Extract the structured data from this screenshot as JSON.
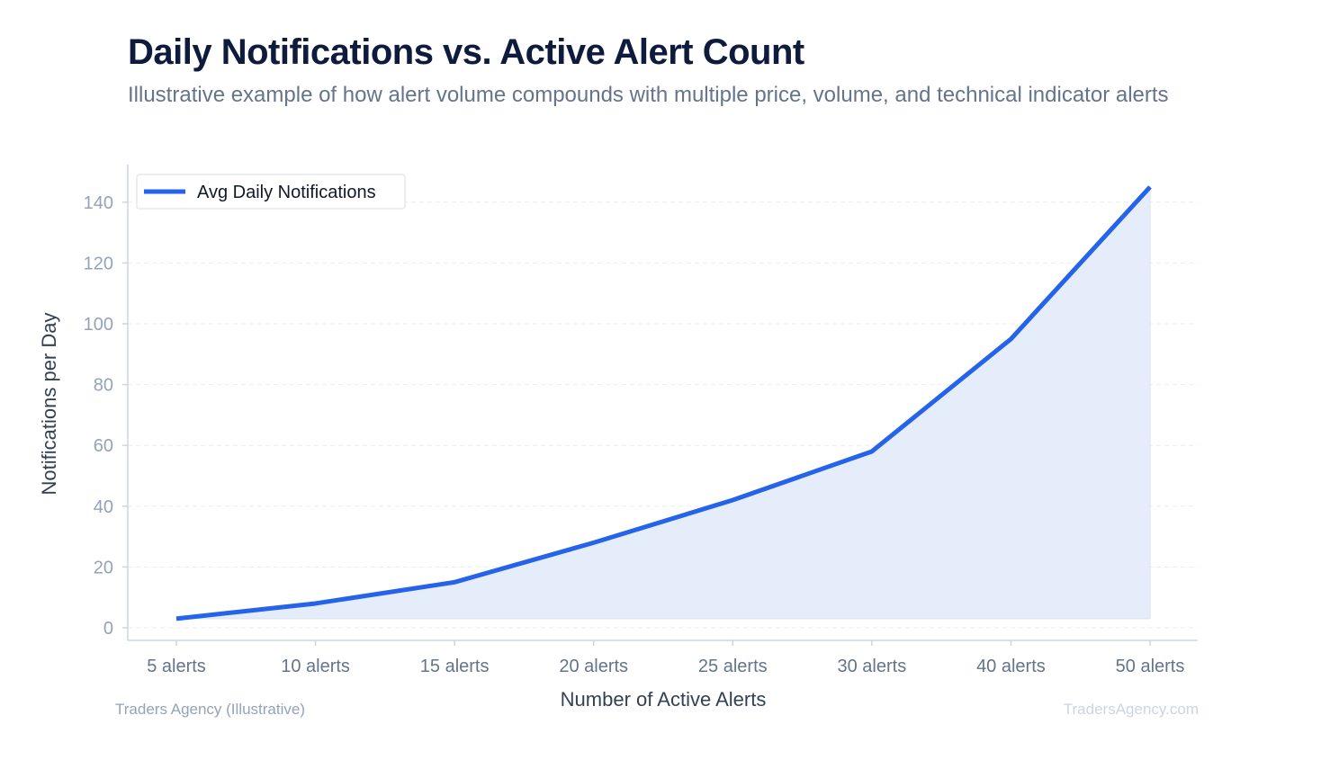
{
  "header": {
    "title": "Daily Notifications vs. Active Alert Count",
    "subtitle": "Illustrative example of how alert volume compounds with multiple price, volume, and technical indicator alerts"
  },
  "footer": {
    "source": "Traders Agency (Illustrative)",
    "watermark": "TradersAgency.com"
  },
  "chart_data": {
    "type": "area",
    "title": "Daily Notifications vs. Active Alert Count",
    "subtitle": "Illustrative example of how alert volume compounds with multiple price, volume, and technical indicator alerts",
    "xlabel": "Number of Active Alerts",
    "ylabel": "Notifications per Day",
    "categories": [
      "5 alerts",
      "10 alerts",
      "15 alerts",
      "20 alerts",
      "25 alerts",
      "30 alerts",
      "40 alerts",
      "50 alerts"
    ],
    "series": [
      {
        "name": "Avg Daily Notifications",
        "values": [
          3,
          8,
          15,
          28,
          42,
          58,
          95,
          145
        ],
        "color": "#2563eb",
        "fill": "#e5edfa"
      }
    ],
    "ylim": [
      0,
      150
    ],
    "yticks": [
      0,
      20,
      40,
      60,
      80,
      100,
      120,
      140
    ],
    "grid": true,
    "legend_position": "top-left"
  }
}
